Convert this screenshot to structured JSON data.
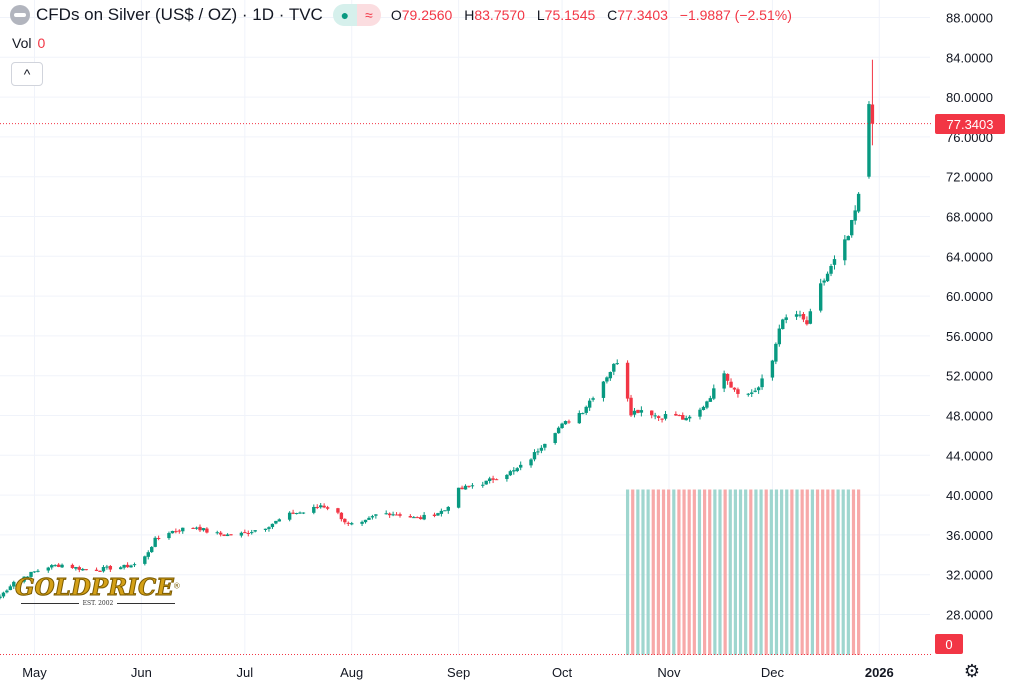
{
  "header": {
    "title": "CFDs on Silver (US$ / OZ) · 1D · TVC",
    "indicator_icons": [
      "dot-indicator-icon",
      "approx-indicator-icon"
    ],
    "indicator_glyphs": {
      "dot": "●",
      "approx": "≈"
    },
    "ohlc": {
      "o_label": "O",
      "o_value": "79.2560",
      "h_label": "H",
      "h_value": "83.7570",
      "l_label": "L",
      "l_value": "75.1545",
      "c_label": "C",
      "c_value": "77.3403",
      "change": "−1.9887 (−2.51%)"
    }
  },
  "volume": {
    "label": "Vol",
    "value": "0"
  },
  "collapse_glyph": "^",
  "last_price_badge": "77.3403",
  "volume_badge": "0",
  "settings_glyph": "⚙",
  "logo": {
    "text": "GOLDPRICE",
    "reg": "®",
    "est": "EST. 2002"
  },
  "colors": {
    "up": "#089981",
    "down": "#f23645",
    "up_vol": "#9fd6cf",
    "down_vol": "#f7a9a9",
    "grid": "#f0f3fa"
  },
  "chart_data": {
    "type": "candlestick",
    "y_axis": {
      "ylim": [
        24,
        88
      ],
      "tick_labels": [
        "88.0000",
        "84.0000",
        "80.0000",
        "76.0000",
        "72.0000",
        "68.0000",
        "64.0000",
        "60.0000",
        "56.0000",
        "52.0000",
        "48.0000",
        "44.0000",
        "40.0000",
        "36.0000",
        "32.0000",
        "28.0000"
      ],
      "tick_values": [
        88,
        84,
        80,
        76,
        72,
        68,
        64,
        60,
        56,
        52,
        48,
        44,
        40,
        36,
        32,
        28
      ]
    },
    "x_axis": {
      "labels": [
        "May",
        "Jun",
        "Jul",
        "Aug",
        "Sep",
        "Oct",
        "Nov",
        "Dec",
        "2026"
      ],
      "label_dates": [
        "2025-05-01",
        "2025-06-01",
        "2025-07-01",
        "2025-08-01",
        "2025-09-01",
        "2025-10-01",
        "2025-11-01",
        "2025-12-01",
        "2026-01-01"
      ],
      "date_range": [
        "2025-04-21",
        "2026-01-07"
      ]
    },
    "last_price": 77.3403,
    "grid": true,
    "close_points": [
      [
        "2025-04-21",
        29.8
      ],
      [
        "2025-04-25",
        31.3
      ],
      [
        "2025-05-01",
        32.3
      ],
      [
        "2025-05-05",
        32.8
      ],
      [
        "2025-05-09",
        33.0
      ],
      [
        "2025-05-13",
        32.7
      ],
      [
        "2025-05-17",
        32.4
      ],
      [
        "2025-05-21",
        32.6
      ],
      [
        "2025-05-27",
        32.8
      ],
      [
        "2025-06-01",
        33.2
      ],
      [
        "2025-06-05",
        35.5
      ],
      [
        "2025-06-09",
        36.3
      ],
      [
        "2025-06-13",
        36.6
      ],
      [
        "2025-06-17",
        36.8
      ],
      [
        "2025-06-21",
        36.2
      ],
      [
        "2025-06-25",
        36.0
      ],
      [
        "2025-06-29",
        36.0
      ],
      [
        "2025-07-03",
        36.4
      ],
      [
        "2025-07-07",
        36.8
      ],
      [
        "2025-07-11",
        37.5
      ],
      [
        "2025-07-15",
        38.2
      ],
      [
        "2025-07-19",
        38.3
      ],
      [
        "2025-07-23",
        39.0
      ],
      [
        "2025-07-27",
        38.5
      ],
      [
        "2025-07-31",
        37.0
      ],
      [
        "2025-08-04",
        37.1
      ],
      [
        "2025-08-08",
        38.0
      ],
      [
        "2025-08-12",
        38.2
      ],
      [
        "2025-08-16",
        38.0
      ],
      [
        "2025-08-20",
        37.6
      ],
      [
        "2025-08-24",
        38.0
      ],
      [
        "2025-08-28",
        38.5
      ],
      [
        "2025-09-01",
        40.5
      ],
      [
        "2025-09-05",
        41.0
      ],
      [
        "2025-09-09",
        41.3
      ],
      [
        "2025-09-13",
        42.0
      ],
      [
        "2025-09-17",
        42.4
      ],
      [
        "2025-09-21",
        43.3
      ],
      [
        "2025-09-25",
        45.0
      ],
      [
        "2025-09-29",
        46.5
      ],
      [
        "2025-10-03",
        47.5
      ],
      [
        "2025-10-07",
        48.5
      ],
      [
        "2025-10-11",
        50.5
      ],
      [
        "2025-10-15",
        52.5
      ],
      [
        "2025-10-17",
        53.5
      ],
      [
        "2025-10-19",
        51.5
      ],
      [
        "2025-10-21",
        48.3
      ],
      [
        "2025-10-25",
        48.7
      ],
      [
        "2025-10-29",
        47.8
      ],
      [
        "2025-11-02",
        48.2
      ],
      [
        "2025-11-06",
        47.5
      ],
      [
        "2025-11-10",
        48.5
      ],
      [
        "2025-11-14",
        50.5
      ],
      [
        "2025-11-17",
        52.5
      ],
      [
        "2025-11-19",
        51.0
      ],
      [
        "2025-11-23",
        49.9
      ],
      [
        "2025-11-27",
        50.8
      ],
      [
        "2025-12-01",
        53.5
      ],
      [
        "2025-12-03",
        57.0
      ],
      [
        "2025-12-07",
        58.5
      ],
      [
        "2025-12-11",
        57.2
      ],
      [
        "2025-12-15",
        61.0
      ],
      [
        "2025-12-19",
        63.5
      ],
      [
        "2025-12-23",
        66.0
      ],
      [
        "2025-12-25",
        68.5
      ],
      [
        "2025-12-27",
        71.5
      ],
      [
        "2025-12-29",
        79.3
      ],
      [
        "2025-12-30",
        77.34
      ]
    ],
    "volume_histogram": {
      "visible_range": [
        "2025-10-20",
        "2025-12-26"
      ],
      "bar_count": 46,
      "level": "uniform"
    }
  }
}
